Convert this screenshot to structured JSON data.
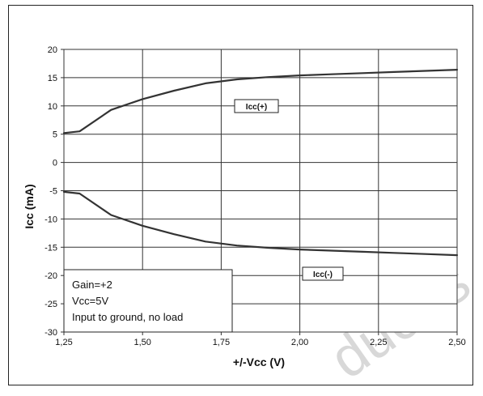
{
  "chart_data": {
    "type": "line",
    "title": "",
    "xlabel": "+/-Vcc  (V)",
    "ylabel": "Icc  (mA)",
    "xlim": [
      1.25,
      2.5
    ],
    "ylim": [
      -30,
      20
    ],
    "grid": true,
    "x_ticks": [
      "1,25",
      "1,50",
      "1,75",
      "2,00",
      "2,25",
      "2,50"
    ],
    "y_ticks": [
      "20",
      "15",
      "10",
      "5",
      "0",
      "-5",
      "-10",
      "-15",
      "-20",
      "-25",
      "-30"
    ],
    "x": [
      1.25,
      1.3,
      1.4,
      1.5,
      1.6,
      1.7,
      1.8,
      1.9,
      2.0,
      2.1,
      2.2,
      2.3,
      2.4,
      2.5
    ],
    "series": [
      {
        "name": "Icc(+)",
        "values": [
          5.2,
          5.5,
          9.3,
          11.2,
          12.7,
          14.0,
          14.7,
          15.1,
          15.4,
          15.6,
          15.8,
          16.0,
          16.2,
          16.4
        ],
        "color": "#333333"
      },
      {
        "name": "Icc(-)",
        "values": [
          -5.2,
          -5.5,
          -9.3,
          -11.2,
          -12.7,
          -14.0,
          -14.7,
          -15.1,
          -15.4,
          -15.6,
          -15.8,
          -16.0,
          -16.2,
          -16.4
        ],
        "color": "#333333"
      }
    ],
    "annotations": [
      "Gain=+2",
      "Vcc=5V",
      "Input to ground, no load"
    ],
    "watermark": "duct(s"
  }
}
